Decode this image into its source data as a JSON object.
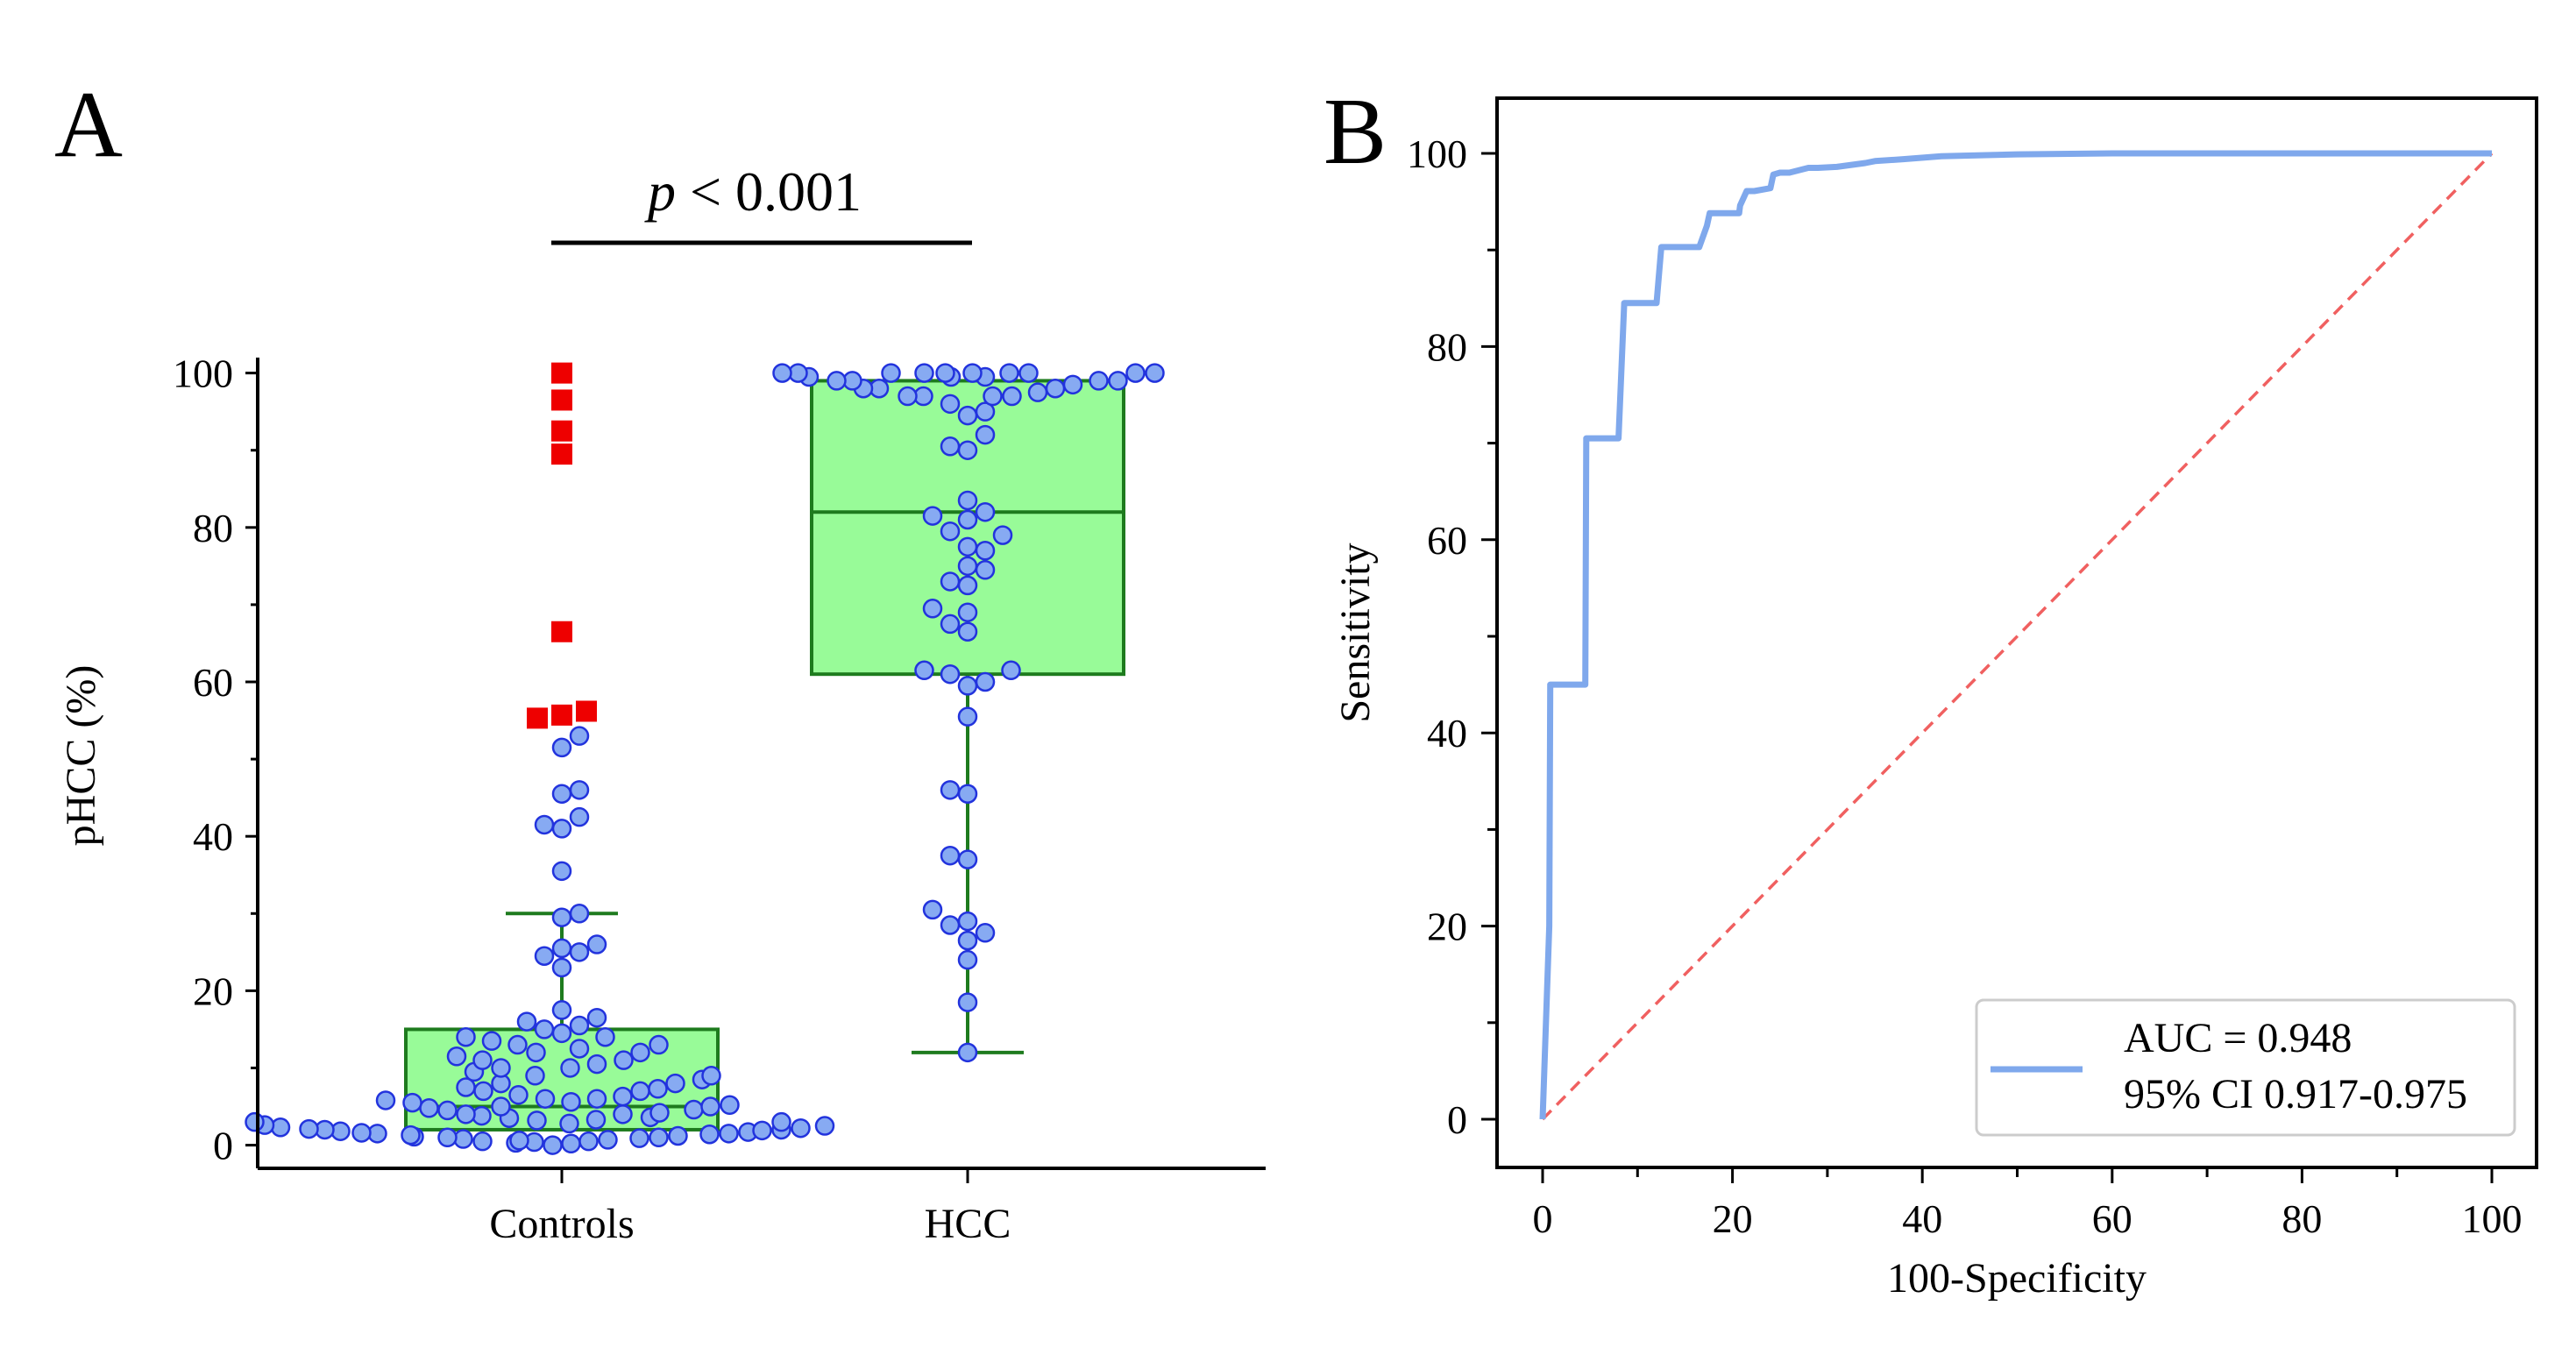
{
  "panels": {
    "a": {
      "letter": "A",
      "annotation_p": "p",
      "annotation_rest": " < 0.001"
    },
    "b": {
      "letter": "B"
    }
  },
  "colors": {
    "box_fill": "#98fb98",
    "box_edge": "#1e7b1e",
    "point_fill": "#87aaf2",
    "point_edge": "#2233dd",
    "outlier": "#ee0000",
    "roc_line": "#7fa8ec",
    "diagonal": "#f06060"
  },
  "chart_data": [
    {
      "type": "box",
      "title": "",
      "xlabel": "",
      "ylabel": "pHCC (%)",
      "ylim": [
        -3,
        102
      ],
      "yticks": [
        0,
        20,
        40,
        60,
        80,
        100
      ],
      "significance": "p < 0.001",
      "categories": [
        "Controls",
        "HCC"
      ],
      "boxes": [
        {
          "name": "Controls",
          "q1": 2,
          "median": 5,
          "q3": 15,
          "whisker_low": 0,
          "whisker_high": 30,
          "outliers": [
            100,
            96.5,
            92.5,
            89.5,
            66.5,
            55.3,
            55.7,
            56.2
          ],
          "points": [
            0,
            0.2,
            0.3,
            0.4,
            0.5,
            0.5,
            0.6,
            0.7,
            0.8,
            0.9,
            1,
            1,
            1.1,
            1.2,
            1.3,
            1.4,
            1.5,
            1.5,
            1.6,
            1.7,
            1.8,
            1.9,
            2,
            2,
            2.1,
            2.2,
            2.3,
            2.5,
            2.6,
            2.8,
            3,
            3,
            3.2,
            3.3,
            3.5,
            3.6,
            3.8,
            4,
            4,
            4.2,
            4.5,
            4.6,
            4.8,
            5,
            5,
            5.2,
            5.5,
            5.6,
            5.8,
            6,
            6,
            6.3,
            6.5,
            7,
            7,
            7.3,
            7.5,
            8,
            8,
            8.5,
            9,
            9,
            9.5,
            10,
            10,
            10.5,
            11,
            11,
            11.5,
            12,
            12,
            12.5,
            13,
            13,
            13.5,
            14,
            14,
            14.5,
            15,
            15.5,
            16,
            16.5,
            17.5,
            23,
            24.5,
            25,
            25.5,
            26,
            29.5,
            30,
            35.5,
            41,
            41.5,
            42.5,
            45.5,
            46,
            51.5,
            53
          ]
        },
        {
          "name": "HCC",
          "q1": 61,
          "median": 82,
          "q3": 99,
          "whisker_low": 12,
          "whisker_high": 100,
          "points": [
            12,
            18.5,
            24,
            26.5,
            27.5,
            28.5,
            29,
            30.5,
            37,
            37.5,
            45.5,
            46,
            55.5,
            59.5,
            60,
            61,
            61.5,
            61.5,
            66.5,
            67.5,
            69,
            69.5,
            72.5,
            73,
            74.5,
            75,
            77,
            77.5,
            79,
            79.5,
            81,
            81.5,
            82,
            83.5,
            90,
            90.5,
            92,
            94.5,
            95,
            96,
            97,
            97,
            97,
            97,
            97.5,
            98,
            98,
            98,
            98.5,
            99,
            99,
            99,
            99,
            99.5,
            99.5,
            99.5,
            100,
            100,
            100,
            100,
            100,
            100,
            100,
            100,
            100,
            100
          ]
        }
      ]
    },
    {
      "type": "line",
      "title": "",
      "xlabel": "100-Specificity",
      "ylabel": "Sensitivity",
      "xlim": [
        -5,
        102
      ],
      "ylim": [
        -5,
        105
      ],
      "xticks": [
        0,
        20,
        40,
        60,
        80,
        100
      ],
      "yticks": [
        0,
        20,
        40,
        60,
        80,
        100
      ],
      "legend_position": "lower-right",
      "legend_lines": [
        "AUC = 0.948",
        "95% CI 0.917-0.975"
      ],
      "series": [
        {
          "name": "ROC",
          "x": [
            0,
            0.7,
            0.8,
            1,
            4.5,
            4.6,
            5,
            8,
            8.6,
            9,
            12,
            12.5,
            13,
            16,
            16.5,
            17.3,
            17.6,
            18.5,
            19.5,
            20.7,
            20.8,
            21.5,
            22.1,
            22.3,
            24,
            24.3,
            25,
            26,
            28,
            29,
            31,
            34,
            35,
            38,
            42,
            50,
            60,
            100
          ],
          "y": [
            0,
            20,
            45,
            45,
            45,
            70.5,
            70.5,
            70.5,
            84.5,
            84.5,
            84.5,
            90.3,
            90.3,
            90.3,
            90.3,
            92.5,
            93.8,
            93.8,
            93.8,
            93.8,
            94.6,
            96.1,
            96.1,
            96.1,
            96.4,
            97.8,
            98,
            98,
            98.5,
            98.5,
            98.6,
            99,
            99.2,
            99.4,
            99.7,
            99.9,
            100,
            100
          ]
        },
        {
          "name": "Reference",
          "x": [
            0,
            100
          ],
          "y": [
            0,
            100
          ]
        }
      ]
    }
  ]
}
